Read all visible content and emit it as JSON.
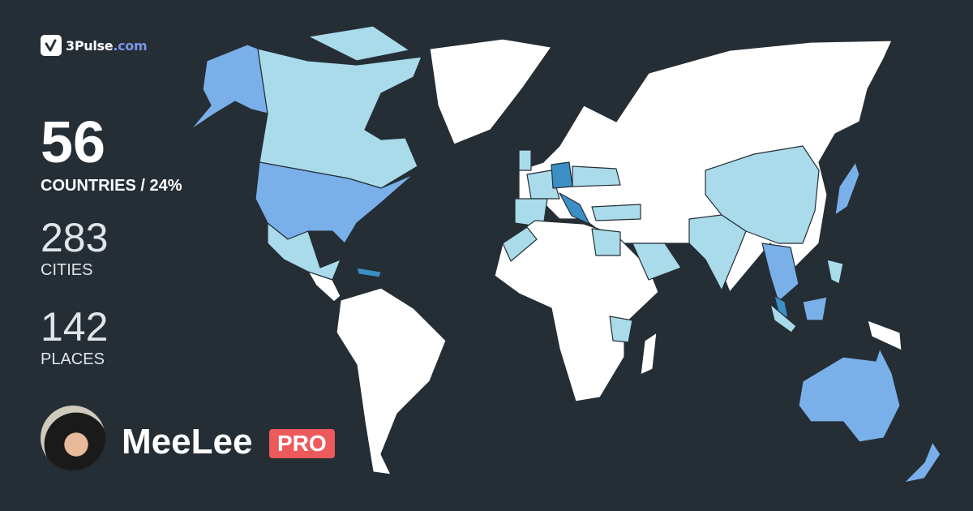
{
  "brand": {
    "name": "3Pulse",
    "domain": ".com"
  },
  "stats": {
    "countries": {
      "value": "56",
      "label": "COUNTRIES / 24%"
    },
    "cities": {
      "value": "283",
      "label": "CITIES"
    },
    "places": {
      "value": "142",
      "label": "PLACES"
    }
  },
  "user": {
    "name": "MeeLee",
    "badge": "PRO"
  },
  "colors": {
    "background": "#252e35",
    "unvisited": "#ffffff",
    "visited_light": "#a9dbeb",
    "visited_medium": "#79b0ea",
    "visited_dark": "#3b8fc5",
    "badge": "#ec5a5c",
    "brand_accent": "#7b95e8"
  }
}
